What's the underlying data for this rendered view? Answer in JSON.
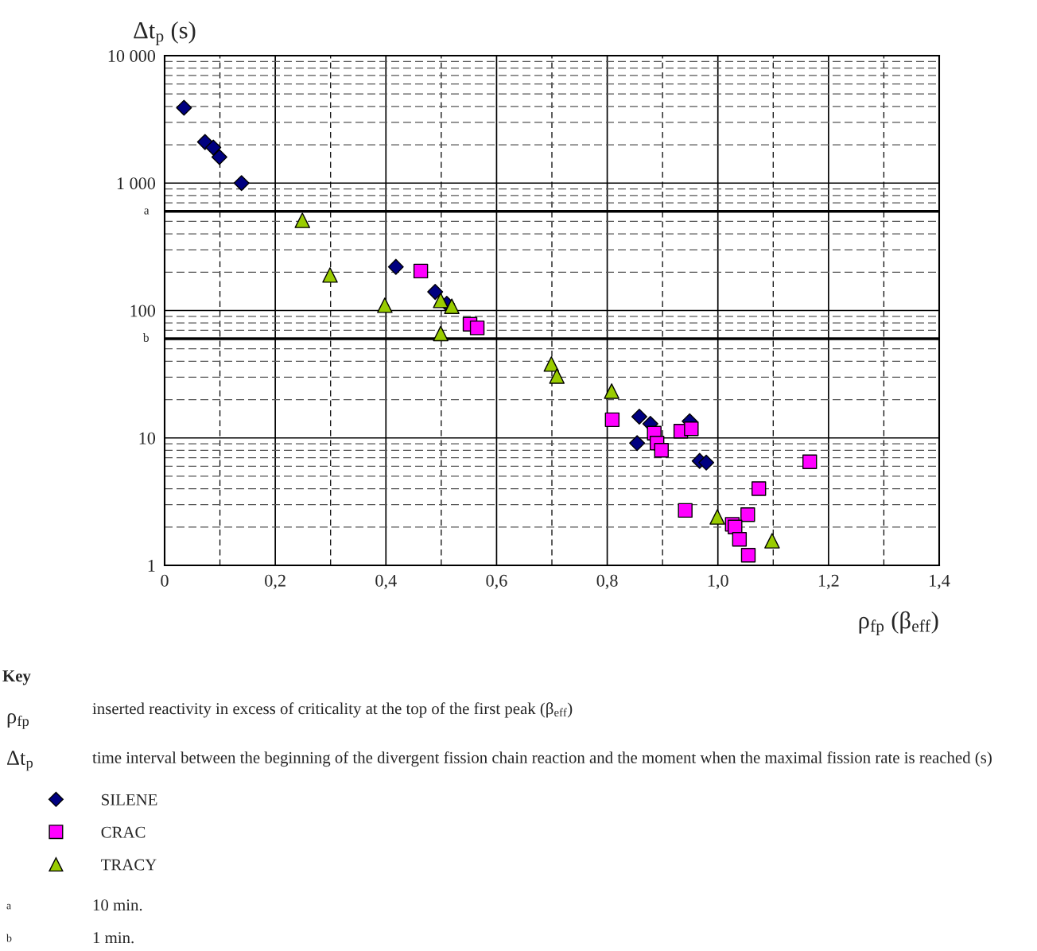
{
  "chart_data": {
    "type": "scatter",
    "xlabel": "ρ$_{fp}$ (β$_{eff}$)",
    "ylabel": "Δt$_{p}$ (s)",
    "log": "y",
    "xlim": [
      0,
      1.4
    ],
    "ylim": [
      1,
      10000
    ],
    "xticks": [
      0,
      {
        "value": 0.1,
        "label": null
      },
      {
        "value": 0.2,
        "label": "0,2"
      },
      {
        "value": 0.3,
        "label": null
      },
      {
        "value": 0.4,
        "label": "0,4"
      },
      {
        "value": 0.5,
        "label": null
      },
      {
        "value": 0.6,
        "label": "0,6"
      },
      {
        "value": 0.7,
        "label": null
      },
      {
        "value": 0.8,
        "label": "0,8"
      },
      {
        "value": 0.9,
        "label": null
      },
      {
        "value": 1.0,
        "label": "1,0"
      },
      {
        "value": 1.1,
        "label": null
      },
      {
        "value": 1.2,
        "label": "1,2"
      },
      {
        "value": 1.3,
        "label": null
      },
      {
        "value": 1.4,
        "label": "1,4"
      }
    ],
    "yticks": [
      1,
      {
        "value": 2,
        "label": null
      },
      {
        "value": 3,
        "label": null
      },
      {
        "value": 4,
        "label": null
      },
      {
        "value": 5,
        "label": null
      },
      {
        "value": 6,
        "label": null
      },
      {
        "value": 7,
        "label": null
      },
      {
        "value": 8,
        "label": null
      },
      {
        "value": 9,
        "label": null
      },
      10,
      {
        "value": 20,
        "label": null
      },
      {
        "value": 30,
        "label": null
      },
      {
        "value": 40,
        "label": null
      },
      {
        "value": 50,
        "label": null
      },
      {
        "value": 70,
        "label": null
      },
      {
        "value": 80,
        "label": null
      },
      {
        "value": 90,
        "label": null
      },
      100,
      {
        "value": 200,
        "label": null
      },
      {
        "value": 300,
        "label": null
      },
      {
        "value": 400,
        "label": null
      },
      {
        "value": 500,
        "label": null
      },
      {
        "value": 700,
        "label": null
      },
      {
        "value": 800,
        "label": null
      },
      {
        "value": 900,
        "label": null
      },
      {
        "value": 1000,
        "label": "1 000"
      },
      {
        "value": 2000,
        "label": null
      },
      {
        "value": 3000,
        "label": null
      },
      {
        "value": 4000,
        "label": null
      },
      {
        "value": 5000,
        "label": null
      },
      {
        "value": 6000,
        "label": null
      },
      {
        "value": 7000,
        "label": null
      },
      {
        "value": 8000,
        "label": null
      },
      {
        "value": 9000,
        "label": null
      },
      {
        "value": 10000,
        "label": "10 000"
      }
    ],
    "grid": true,
    "legend": "bottom left",
    "series": [
      {
        "name": "SILENE",
        "color": "#000080",
        "marker": "diamond",
        "x": [
          0.035,
          0.073,
          0.088,
          0.099,
          0.139,
          0.418,
          0.489,
          0.51,
          0.858,
          0.878,
          0.854,
          0.949,
          0.967,
          0.979
        ],
        "values": [
          3900,
          2100,
          1900,
          1600,
          1000,
          220,
          140,
          113,
          14.7,
          12.9,
          9.1,
          13.5,
          6.6,
          6.4
        ]
      },
      {
        "name": "CRAC",
        "color": "#ff00ff",
        "marker": "square",
        "x": [
          0.463,
          0.552,
          0.565,
          0.809,
          0.885,
          0.89,
          0.898,
          0.933,
          0.952,
          1.166,
          1.074,
          0.941,
          1.054,
          1.026,
          1.031,
          1.039,
          1.055
        ],
        "values": [
          204,
          78,
          73,
          13.9,
          10.9,
          9.1,
          8.0,
          11.3,
          11.8,
          6.5,
          4.0,
          2.7,
          2.5,
          2.1,
          2.0,
          1.6,
          1.2
        ]
      },
      {
        "name": "TRACY",
        "color": "#99cc00",
        "marker": "triangle",
        "x": [
          0.249,
          0.299,
          0.398,
          0.499,
          0.519,
          0.499,
          0.699,
          0.709,
          0.808,
          0.999,
          1.098
        ],
        "values": [
          510,
          190,
          110,
          120,
          108,
          66,
          38,
          30.6,
          23.3,
          2.4,
          1.56
        ]
      }
    ],
    "ref_lines": [
      {
        "axis": "y",
        "value": 600,
        "label": "a",
        "color": "#000000"
      },
      {
        "axis": "y",
        "value": 60,
        "label": "b",
        "color": "#000000"
      }
    ],
    "annotations": [
      "Key",
      "ρ$_{fp}$",
      "inserted reactivity in excess of criticality at the top of the first peak (β$_{eff}$)",
      "Δt$_{p}$",
      "time interval between the beginning of the divergent fission chain reaction and the moment when the maximal fission rate is reached (s)",
      "a",
      "10 min.",
      "b",
      "1 min."
    ]
  }
}
